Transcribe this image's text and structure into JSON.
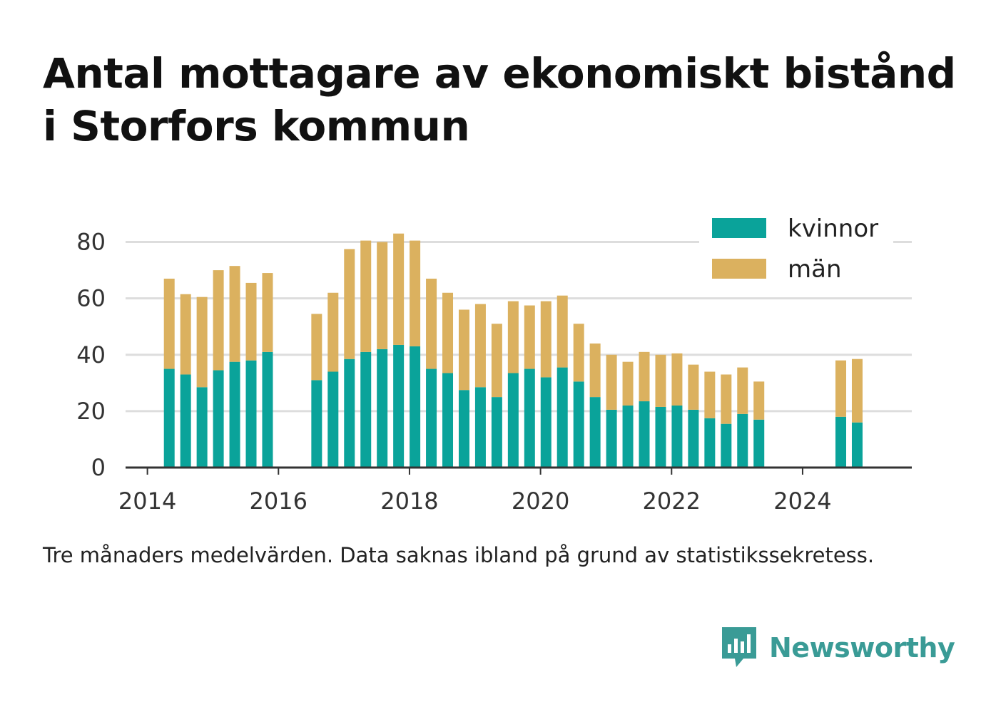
{
  "title": "Antal mottagare av ekonomiskt bistånd i Storfors kommun",
  "footnote": "Tre månaders medelvärden. Data saknas ibland på grund av statistikssekretess.",
  "brand": {
    "name": "Newsworthy",
    "icon": "bar-chart-speech-bubble-icon"
  },
  "colors": {
    "kvinnor": "#0aa39a",
    "man": "#dbb15f",
    "grid": "#dddddd",
    "axis": "#333333"
  },
  "chart_data": {
    "type": "bar",
    "stacked": true,
    "title": "Antal mottagare av ekonomiskt bistånd i Storfors kommun",
    "xlabel": "",
    "ylabel": "",
    "xlim": [
      "2013-09-01",
      "2025-09-01"
    ],
    "ylim": [
      0,
      90
    ],
    "yticks": [
      0,
      20,
      40,
      60,
      80
    ],
    "xticks": [
      "2014",
      "2016",
      "2018",
      "2020",
      "2022",
      "2024"
    ],
    "grid": "horizontal",
    "legend_position": "top-right",
    "x": [
      "2014-05",
      "2014-08",
      "2014-11",
      "2015-02",
      "2015-05",
      "2015-08",
      "2015-11",
      "2016-08",
      "2016-11",
      "2017-02",
      "2017-05",
      "2017-08",
      "2017-11",
      "2018-02",
      "2018-05",
      "2018-08",
      "2018-11",
      "2019-02",
      "2019-05",
      "2019-08",
      "2019-11",
      "2020-02",
      "2020-05",
      "2020-08",
      "2020-11",
      "2021-02",
      "2021-05",
      "2021-08",
      "2021-11",
      "2022-02",
      "2022-05",
      "2022-08",
      "2022-11",
      "2023-02",
      "2023-05",
      "2024-08",
      "2024-11"
    ],
    "series": [
      {
        "name": "kvinnor",
        "color": "#0aa39a",
        "values": [
          35,
          33,
          28.5,
          34.5,
          37.5,
          38,
          41,
          31,
          34,
          38.5,
          41,
          42,
          43.5,
          43,
          35,
          33.5,
          27.5,
          28.5,
          25,
          33.5,
          35,
          32,
          35.5,
          30.5,
          25,
          20.5,
          22,
          23.5,
          21.5,
          22,
          20.5,
          17.5,
          15.5,
          19,
          17,
          18,
          16
        ]
      },
      {
        "name": "män",
        "color": "#dbb15f",
        "values": [
          32,
          28.5,
          32,
          35.5,
          34,
          27.5,
          28,
          23.5,
          28,
          39,
          39.5,
          38,
          39.5,
          37.5,
          32,
          28.5,
          28.5,
          29.5,
          26,
          25.5,
          22.5,
          27,
          25.5,
          20.5,
          19,
          19.5,
          15.5,
          17.5,
          18.5,
          18.5,
          16,
          16.5,
          17.5,
          16.5,
          13.5,
          20,
          22.5
        ]
      }
    ]
  }
}
